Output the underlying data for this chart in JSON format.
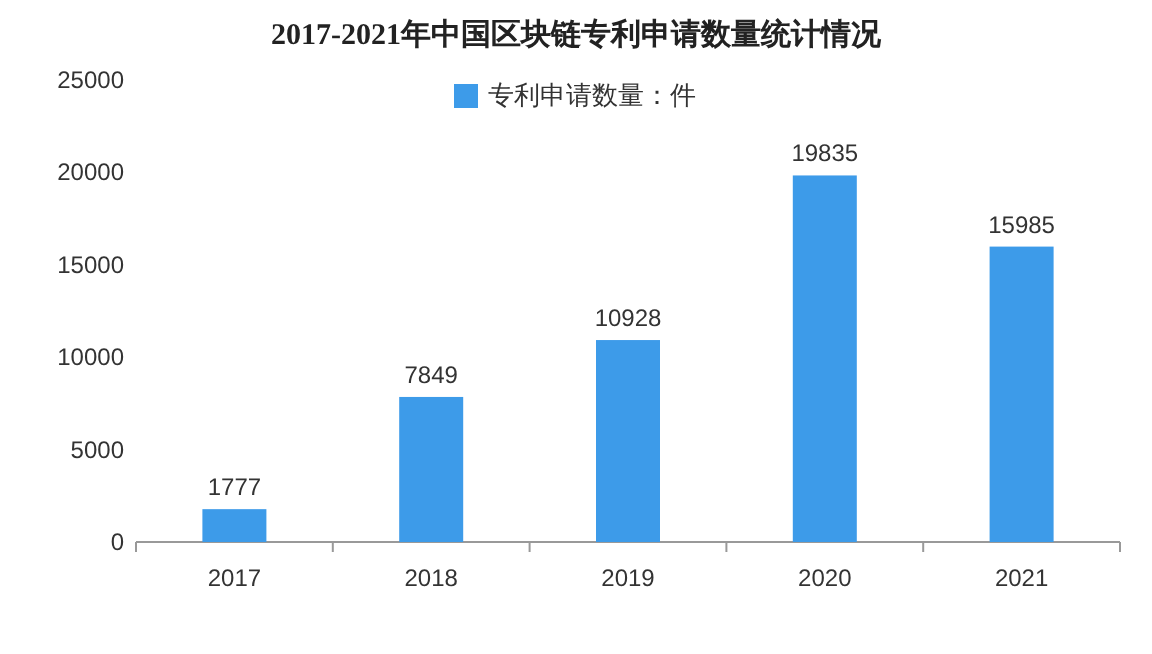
{
  "chart_data": {
    "type": "bar",
    "title": "2017-2021年中国区块链专利申请数量统计情况",
    "categories": [
      "2017",
      "2018",
      "2019",
      "2020",
      "2021"
    ],
    "series": [
      {
        "name": "专利申请数量：件",
        "color": "#3d9be9",
        "values": [
          1777,
          7849,
          10928,
          19835,
          15985
        ]
      }
    ],
    "ylim": [
      0,
      25000
    ],
    "yticks": [
      0,
      5000,
      10000,
      15000,
      20000,
      25000
    ],
    "data_labels": true,
    "legend": "top",
    "grid": false
  }
}
